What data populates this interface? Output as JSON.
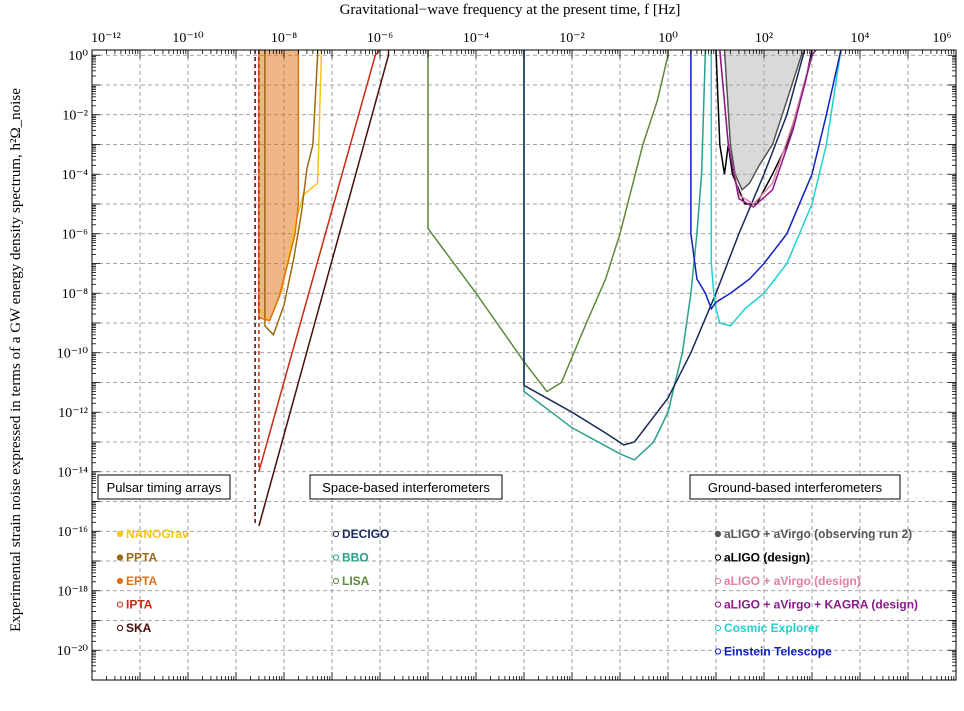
{
  "chart_data": {
    "type": "line",
    "title": "",
    "xlabel": "Gravitational−wave frequency at the present time, f [Hz]",
    "ylabel": "Experimental strain noise expressed in terms of a GW energy density spectrum, h²Ω_noise",
    "x_scale": "log",
    "y_scale": "log",
    "xlim": [
      1e-12,
      1000000.0
    ],
    "ylim": [
      1e-21,
      1.5
    ],
    "grid": true,
    "x_ticks": [
      {
        "value": 1e-12,
        "label": "10⁻¹²"
      },
      {
        "value": 1e-10,
        "label": "10⁻¹⁰"
      },
      {
        "value": 1e-08,
        "label": "10⁻⁸"
      },
      {
        "value": 1e-06,
        "label": "10⁻⁶"
      },
      {
        "value": 0.0001,
        "label": "10⁻⁴"
      },
      {
        "value": 0.01,
        "label": "10⁻²"
      },
      {
        "value": 1,
        "label": "10⁰"
      },
      {
        "value": 100.0,
        "label": "10²"
      },
      {
        "value": 10000.0,
        "label": "10⁴"
      },
      {
        "value": 1000000.0,
        "label": "10⁶"
      }
    ],
    "y_ticks": [
      {
        "value": 1,
        "label": "10⁰"
      },
      {
        "value": 0.01,
        "label": "10⁻²"
      },
      {
        "value": 0.0001,
        "label": "10⁻⁴"
      },
      {
        "value": 1e-06,
        "label": "10⁻⁶"
      },
      {
        "value": 1e-08,
        "label": "10⁻⁸"
      },
      {
        "value": 1e-10,
        "label": "10⁻¹⁰"
      },
      {
        "value": 1e-12,
        "label": "10⁻¹²"
      },
      {
        "value": 1e-14,
        "label": "10⁻¹⁴"
      },
      {
        "value": 1e-16,
        "label": "10⁻¹⁶"
      },
      {
        "value": 1e-18,
        "label": "10⁻¹⁸"
      },
      {
        "value": 1e-20,
        "label": "10⁻²⁰"
      }
    ],
    "group_labels": [
      "Pulsar timing arrays",
      "Space-based interferometers",
      "Ground-based interferometers"
    ],
    "fills": [
      {
        "series": "EPTA",
        "color": "#e07010",
        "opacity": 0.5,
        "points": [
          [
            3e-09,
            1.5
          ],
          [
            3e-09,
            1.5e-09
          ],
          [
            5e-09,
            1.2e-09
          ],
          [
            8e-09,
            8e-09
          ],
          [
            1.2e-08,
            1e-07
          ],
          [
            1.7e-08,
            1e-06
          ],
          [
            2e-08,
            1e-05
          ],
          [
            2e-08,
            1.5
          ]
        ]
      },
      {
        "series": "aLIGO + aVirgo (observing run 2)",
        "color": "#aaaaaa",
        "opacity": 0.45,
        "points": [
          [
            15,
            1.5
          ],
          [
            20,
            0.001
          ],
          [
            25,
            0.0001
          ],
          [
            35,
            3e-05
          ],
          [
            50,
            5e-05
          ],
          [
            80,
            0.0002
          ],
          [
            150,
            0.001
          ],
          [
            300,
            0.03
          ],
          [
            600,
            1
          ],
          [
            700,
            1.5
          ]
        ]
      }
    ],
    "series": [
      {
        "name": "NANOGrav",
        "color": "#f5c518",
        "dash": false,
        "points": [
          [
            3e-09,
            1.5
          ],
          [
            3e-09,
            3e-09
          ],
          [
            5e-09,
            1.2e-09
          ],
          [
            9e-09,
            1.2e-08
          ],
          [
            1.6e-08,
            1.5e-06
          ],
          [
            2.5e-08,
            2e-05
          ],
          [
            5e-08,
            5e-05
          ],
          [
            6e-08,
            1
          ],
          [
            6e-08,
            1.5
          ]
        ]
      },
      {
        "name": "PPTA",
        "color": "#9b6a12",
        "dash": false,
        "points": [
          [
            4e-09,
            1.5
          ],
          [
            4e-09,
            8e-10
          ],
          [
            6e-09,
            4e-10
          ],
          [
            1e-08,
            4e-09
          ],
          [
            1.6e-08,
            1.5e-07
          ],
          [
            2.3e-08,
            5e-06
          ],
          [
            3e-08,
            0.00015
          ],
          [
            4e-08,
            0.001
          ],
          [
            5e-08,
            1
          ],
          [
            5e-08,
            1.5
          ]
        ]
      },
      {
        "name": "EPTA",
        "color": "#e07010",
        "dash": false,
        "points": [
          [
            3e-09,
            1.5
          ],
          [
            3e-09,
            1.5e-09
          ],
          [
            5e-09,
            1.2e-09
          ],
          [
            8e-09,
            8e-09
          ],
          [
            1.2e-08,
            1e-07
          ],
          [
            1.7e-08,
            1e-06
          ],
          [
            2e-08,
            1e-05
          ],
          [
            2e-08,
            1.5
          ]
        ]
      },
      {
        "name": "IPTA",
        "color": "#c62a10",
        "dash": false,
        "points": [
          [
            3e-09,
            1e-14
          ],
          [
            8e-07,
            1
          ],
          [
            1e-06,
            1.5
          ],
          [
            1e-06,
            1.5
          ]
        ]
      },
      {
        "name": "SKA",
        "color": "#4a0d0d",
        "dash": false,
        "points": [
          [
            3e-09,
            1.5e-16
          ],
          [
            1.5e-06,
            1
          ],
          [
            1.5e-06,
            1.5
          ]
        ]
      },
      {
        "name": "IPTA edge",
        "color": "#c62a10",
        "dash": true,
        "points": [
          [
            3e-09,
            1.5
          ],
          [
            3e-09,
            1e-14
          ]
        ]
      },
      {
        "name": "SKA edge",
        "color": "#4a0d0d",
        "dash": true,
        "points": [
          [
            2.5e-09,
            1.5
          ],
          [
            2.5e-09,
            1.5e-16
          ]
        ]
      },
      {
        "name": "LISA",
        "color": "#5a8a3a",
        "dash": false,
        "points": [
          [
            1e-05,
            1.5
          ],
          [
            1e-05,
            1.5e-06
          ],
          [
            0.0001,
            1e-08
          ],
          [
            0.001,
            5e-11
          ],
          [
            0.003,
            5e-12
          ],
          [
            0.006,
            1e-11
          ],
          [
            0.02,
            1e-09
          ],
          [
            0.05,
            3e-08
          ],
          [
            0.1,
            1e-06
          ],
          [
            0.3,
            0.001
          ],
          [
            0.6,
            0.03
          ],
          [
            1,
            1
          ],
          [
            1,
            1.5
          ]
        ]
      },
      {
        "name": "BBO",
        "color": "#2aa08a",
        "dash": false,
        "points": [
          [
            0.001,
            1.5
          ],
          [
            0.001,
            5e-12
          ],
          [
            0.01,
            3e-13
          ],
          [
            0.1,
            4e-14
          ],
          [
            0.2,
            2.5e-14
          ],
          [
            0.5,
            1e-13
          ],
          [
            1,
            1e-12
          ],
          [
            2,
            1e-10
          ],
          [
            3,
            1e-08
          ],
          [
            4,
            1e-06
          ],
          [
            5,
            0.0001
          ],
          [
            6,
            1.5
          ]
        ]
      },
      {
        "name": "DECIGO",
        "color": "#1a2a5a",
        "dash": false,
        "points": [
          [
            0.001,
            1.5
          ],
          [
            0.001,
            8e-12
          ],
          [
            0.01,
            1e-12
          ],
          [
            0.05,
            2e-13
          ],
          [
            0.12,
            8e-14
          ],
          [
            0.2,
            1e-13
          ],
          [
            1,
            3e-12
          ],
          [
            3,
            1e-10
          ],
          [
            10,
            1e-08
          ],
          [
            30,
            1e-06
          ],
          [
            100,
            0.0001
          ],
          [
            300,
            0.01
          ],
          [
            700,
            1.5
          ]
        ]
      },
      {
        "name": "aLIGO + aVirgo (observing run 2)",
        "color": "#555555",
        "dash": false,
        "points": [
          [
            15,
            1.5
          ],
          [
            20,
            0.001
          ],
          [
            25,
            0.0001
          ],
          [
            35,
            3e-05
          ],
          [
            50,
            5e-05
          ],
          [
            80,
            0.0002
          ],
          [
            150,
            0.001
          ],
          [
            300,
            0.03
          ],
          [
            600,
            1
          ],
          [
            700,
            1.5
          ]
        ]
      },
      {
        "name": "aLIGO (design)",
        "color": "#000000",
        "dash": false,
        "points": [
          [
            10,
            1.5
          ],
          [
            12,
            0.001
          ],
          [
            15,
            0.0001
          ],
          [
            18,
            0.001
          ],
          [
            22,
            0.0001
          ],
          [
            40,
            1e-05
          ],
          [
            70,
            1e-05
          ],
          [
            150,
            0.0001
          ],
          [
            300,
            0.001
          ],
          [
            700,
            0.1
          ],
          [
            1000,
            1.5
          ]
        ]
      },
      {
        "name": "aLIGO + aVirgo (design)",
        "color": "#e080a0",
        "dash": false,
        "points": [
          [
            12,
            1.5
          ],
          [
            18,
            0.001
          ],
          [
            30,
            2e-05
          ],
          [
            60,
            1e-05
          ],
          [
            150,
            5e-05
          ],
          [
            400,
            0.005
          ],
          [
            1000,
            1
          ],
          [
            1200,
            1.5
          ]
        ]
      },
      {
        "name": "aLIGO + aVirgo + KAGRA (design)",
        "color": "#8a1a8a",
        "dash": false,
        "points": [
          [
            12,
            1.5
          ],
          [
            18,
            0.001
          ],
          [
            30,
            1.5e-05
          ],
          [
            60,
            8e-06
          ],
          [
            150,
            3e-05
          ],
          [
            400,
            0.003
          ],
          [
            1000,
            1
          ],
          [
            1200,
            1.5
          ]
        ]
      },
      {
        "name": "Cosmic Explorer",
        "color": "#20d0d0",
        "dash": false,
        "points": [
          [
            8,
            1.5
          ],
          [
            8,
            1e-07
          ],
          [
            9,
            1e-08
          ],
          [
            10,
            3e-09
          ],
          [
            12,
            1e-09
          ],
          [
            20,
            8e-10
          ],
          [
            40,
            3e-09
          ],
          [
            100,
            1e-08
          ],
          [
            300,
            1e-07
          ],
          [
            1000,
            1e-05
          ],
          [
            2000,
            0.001
          ],
          [
            4000,
            1.5
          ]
        ]
      },
      {
        "name": "Einstein Telescope",
        "color": "#1020c0",
        "dash": false,
        "points": [
          [
            3,
            1.5
          ],
          [
            3,
            1e-06
          ],
          [
            4,
            3e-08
          ],
          [
            6,
            1e-08
          ],
          [
            8,
            3e-09
          ],
          [
            10,
            5e-09
          ],
          [
            20,
            1e-08
          ],
          [
            50,
            3e-08
          ],
          [
            100,
            1e-07
          ],
          [
            300,
            1e-06
          ],
          [
            1000,
            0.0001
          ],
          [
            2000,
            0.01
          ],
          [
            4000,
            1.5
          ]
        ]
      }
    ],
    "legend": [
      {
        "group": "Pulsar timing arrays",
        "entries": [
          {
            "label": "NANOGrav",
            "color": "#f5c518",
            "marker": "filled"
          },
          {
            "label": "PPTA",
            "color": "#9b6a12",
            "marker": "filled"
          },
          {
            "label": "EPTA",
            "color": "#e07010",
            "marker": "filled"
          },
          {
            "label": "IPTA",
            "color": "#c62a10",
            "marker": "open"
          },
          {
            "label": "SKA",
            "color": "#4a0d0d",
            "marker": "open"
          }
        ]
      },
      {
        "group": "Space-based interferometers",
        "entries": [
          {
            "label": "DECIGO",
            "color": "#1a2a5a",
            "marker": "open"
          },
          {
            "label": "BBO",
            "color": "#2aa08a",
            "marker": "open"
          },
          {
            "label": "LISA",
            "color": "#5a8a3a",
            "marker": "open"
          }
        ]
      },
      {
        "group": "Ground-based interferometers",
        "entries": [
          {
            "label": "aLIGO + aVirgo (observing run 2)",
            "color": "#555555",
            "marker": "filled"
          },
          {
            "label": "aLIGO (design)",
            "color": "#000000",
            "marker": "open"
          },
          {
            "label": "aLIGO + aVirgo (design)",
            "color": "#e080a0",
            "marker": "open"
          },
          {
            "label": "aLIGO + aVirgo + KAGRA (design)",
            "color": "#8a1a8a",
            "marker": "open"
          },
          {
            "label": "Cosmic Explorer",
            "color": "#20d0d0",
            "marker": "open"
          },
          {
            "label": "Einstein Telescope",
            "color": "#1020c0",
            "marker": "open"
          }
        ]
      }
    ]
  }
}
